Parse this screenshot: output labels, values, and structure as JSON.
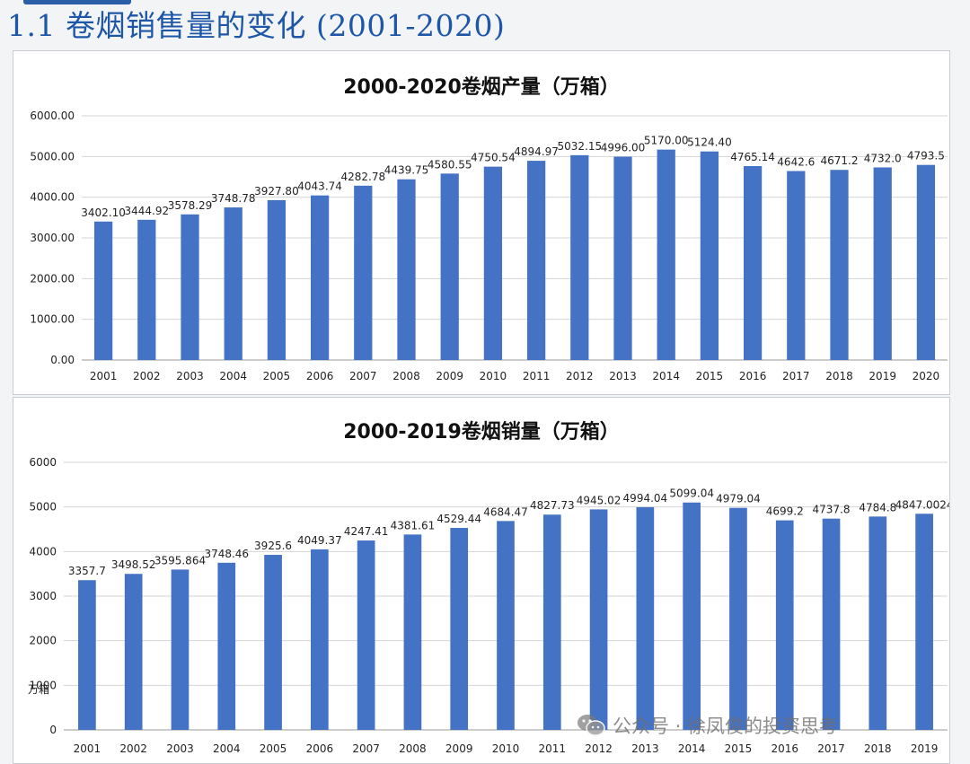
{
  "slide": {
    "title": "1.1 卷烟销售量的变化 (2001-2020)"
  },
  "watermark": {
    "text": "公众号 · 徐凤俊的投资思考",
    "icon": "wechat-icon"
  },
  "colors": {
    "bar": "#4472c4",
    "grid": "#d4d4d4",
    "title_blue": "#1f57a8"
  },
  "chart_data": [
    {
      "type": "bar",
      "title": "2000-2020卷烟产量（万箱）",
      "xlabel": "",
      "ylabel": "",
      "ylim": [
        0,
        6000
      ],
      "yticks": [
        "0.00",
        "1000.00",
        "2000.00",
        "3000.00",
        "4000.00",
        "5000.00",
        "6000.00"
      ],
      "grid": true,
      "categories": [
        "2001",
        "2002",
        "2003",
        "2004",
        "2005",
        "2006",
        "2007",
        "2008",
        "2009",
        "2010",
        "2011",
        "2012",
        "2013",
        "2014",
        "2015",
        "2016",
        "2017",
        "2018",
        "2019",
        "2020"
      ],
      "values": [
        3402.1,
        3444.92,
        3578.29,
        3748.78,
        3927.8,
        4043.74,
        4282.78,
        4439.75,
        4580.55,
        4750.54,
        4894.97,
        5032.15,
        4996.0,
        5170.0,
        5124.4,
        4765.14,
        4642.6,
        4671.2,
        4732.0,
        4793.5
      ],
      "labels": [
        "3402.10",
        "3444.92",
        "3578.29",
        "3748.78",
        "3927.80",
        "4043.74",
        "4282.78",
        "4439.75",
        "4580.55",
        "4750.54",
        "4894.97",
        "5032.15",
        "4996.00",
        "5170.00",
        "5124.40",
        "4765.14",
        "4642.6",
        "4671.2",
        "4732.0",
        "4793.5"
      ]
    },
    {
      "type": "bar",
      "title": "2000-2019卷烟销量（万箱）",
      "xlabel": "",
      "ylabel": "万箱",
      "ylim": [
        0,
        6000
      ],
      "yticks": [
        "0",
        "1000",
        "2000",
        "3000",
        "4000",
        "5000",
        "6000"
      ],
      "grid": true,
      "categories": [
        "2001",
        "2002",
        "2003",
        "2004",
        "2005",
        "2006",
        "2007",
        "2008",
        "2009",
        "2010",
        "2011",
        "2012",
        "2013",
        "2014",
        "2015",
        "2016",
        "2017",
        "2018",
        "2019"
      ],
      "values": [
        3357.7,
        3498.52,
        3595.864,
        3748.46,
        3925.6,
        4049.37,
        4247.41,
        4381.61,
        4529.44,
        4684.47,
        4827.73,
        4945.02,
        4994.04,
        5099.04,
        4979.04,
        4699.2,
        4737.8,
        4784.8,
        4847.0024
      ],
      "labels": [
        "3357.7",
        "3498.52",
        "3595.864",
        "3748.46",
        "3925.6",
        "4049.37",
        "4247.41",
        "4381.61",
        "4529.44",
        "4684.47",
        "4827.73",
        "4945.02",
        "4994.04",
        "5099.04",
        "4979.04",
        "4699.2",
        "4737.8",
        "4784.8",
        "4847.0024"
      ]
    }
  ]
}
